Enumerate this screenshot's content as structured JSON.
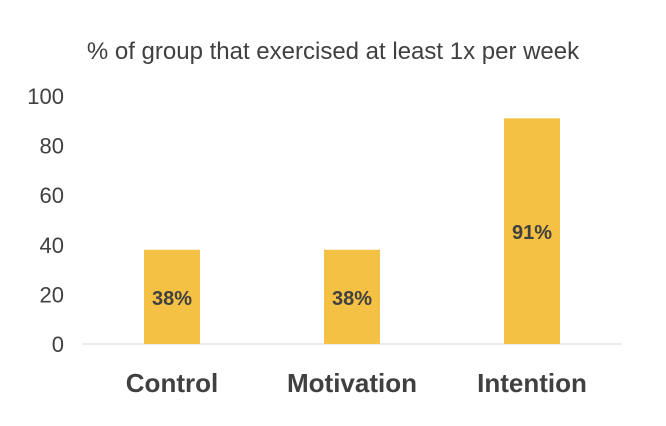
{
  "chart_data": {
    "type": "bar",
    "title": "% of group that exercised at least 1x per week",
    "categories": [
      "Control",
      "Motivation",
      "Intention"
    ],
    "values": [
      38,
      38,
      91
    ],
    "data_labels": [
      "38%",
      "38%",
      "91%"
    ],
    "xlabel": "",
    "ylabel": "",
    "ylim": [
      0,
      100
    ],
    "yticks": [
      0,
      20,
      40,
      60,
      80,
      100
    ],
    "grid": false,
    "legend": "none",
    "bar_color": "#F4C144"
  }
}
